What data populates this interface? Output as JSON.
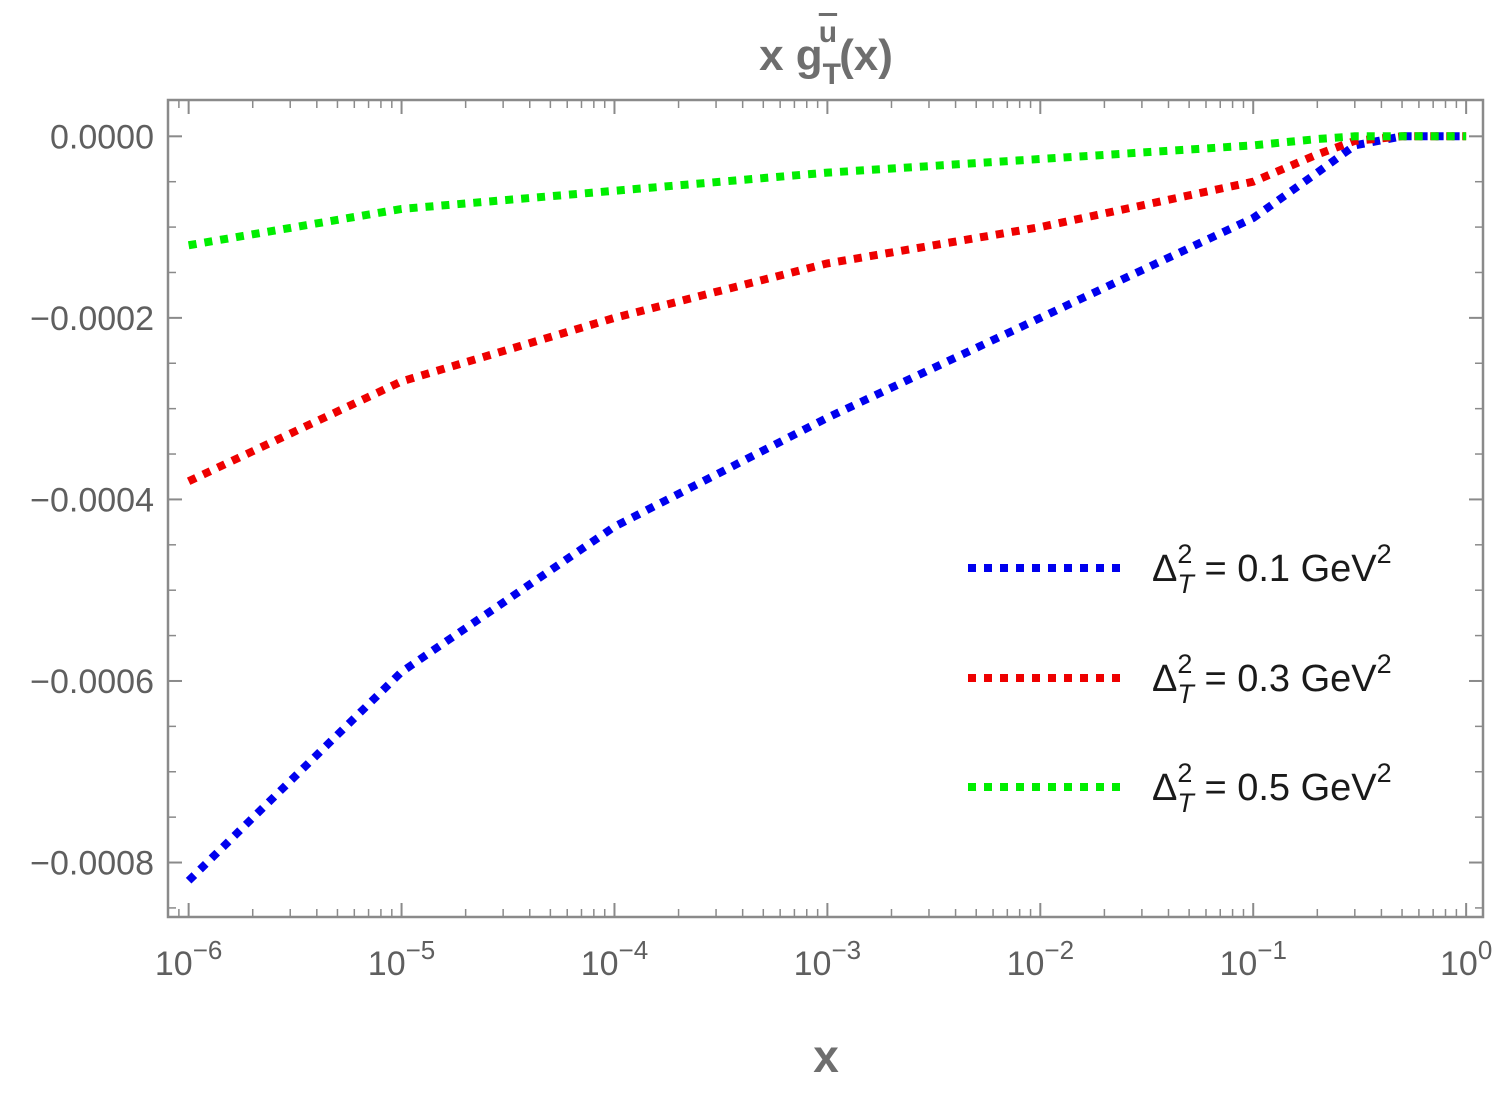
{
  "chart_data": {
    "type": "line",
    "title": {
      "prefix": "x g",
      "superscript": "u",
      "subscript": "T",
      "suffix": "(x)"
    },
    "xlabel": "x",
    "ylabel": "",
    "x_scale": "log",
    "xlim": [
      8e-07,
      1.2
    ],
    "ylim": [
      -0.00086,
      4e-05
    ],
    "grid": false,
    "legend_position": "right",
    "x_ticks": [
      {
        "value": 1e-06,
        "base": "10",
        "exp": "−6"
      },
      {
        "value": 1e-05,
        "base": "10",
        "exp": "−5"
      },
      {
        "value": 0.0001,
        "base": "10",
        "exp": "−4"
      },
      {
        "value": 0.001,
        "base": "10",
        "exp": "−3"
      },
      {
        "value": 0.01,
        "base": "10",
        "exp": "−2"
      },
      {
        "value": 0.1,
        "base": "10",
        "exp": "−1"
      },
      {
        "value": 1,
        "base": "10",
        "exp": "0"
      }
    ],
    "y_ticks": [
      {
        "value": 0,
        "label": "0.0000"
      },
      {
        "value": -0.0002,
        "label": "−0.0002"
      },
      {
        "value": -0.0004,
        "label": "−0.0004"
      },
      {
        "value": -0.0006,
        "label": "−0.0006"
      },
      {
        "value": -0.0008,
        "label": "−0.0008"
      }
    ],
    "x": [
      1e-06,
      1e-05,
      0.0001,
      0.001,
      0.01,
      0.1,
      0.2,
      0.3,
      0.5,
      1.0
    ],
    "series": [
      {
        "legend": {
          "delta": "Δ",
          "sup": "2",
          "sub": "T",
          "text": " = 0.1 GeV",
          "unit_sup": "2"
        },
        "color": "#0000ee",
        "values": [
          -0.00082,
          -0.00059,
          -0.00043,
          -0.00031,
          -0.0002,
          -9e-05,
          -4e-05,
          -1e-05,
          0.0,
          0.0
        ]
      },
      {
        "legend": {
          "delta": "Δ",
          "sup": "2",
          "sub": "T",
          "text": " = 0.3 GeV",
          "unit_sup": "2"
        },
        "color": "#ee0000",
        "values": [
          -0.00038,
          -0.00027,
          -0.0002,
          -0.00014,
          -0.0001,
          -5e-05,
          -2e-05,
          -5e-06,
          0.0,
          0.0
        ]
      },
      {
        "legend": {
          "delta": "Δ",
          "sup": "2",
          "sub": "T",
          "text": " = 0.5 GeV",
          "unit_sup": "2"
        },
        "color": "#00ee00",
        "values": [
          -0.00012,
          -8e-05,
          -6e-05,
          -4e-05,
          -2.5e-05,
          -1e-05,
          -3e-06,
          0.0,
          0.0,
          0.0
        ]
      }
    ]
  }
}
